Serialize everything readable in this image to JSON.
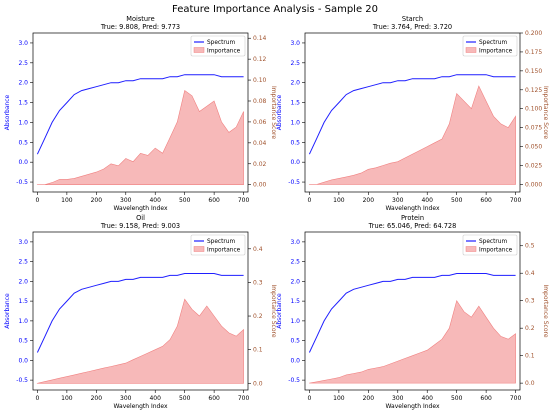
{
  "figure": {
    "suptitle": "Feature Importance Analysis - Sample 20"
  },
  "colors": {
    "spectrum": "#1f1fff",
    "importance": "#f08080",
    "importance_axis": "#a0522d"
  },
  "chart_data": [
    {
      "type": "line+area",
      "title": "Moisture",
      "subtitle": "True: 9.808, Pred: 9.773",
      "xlabel": "Wavelength Index",
      "ylabel": "Absorbance",
      "y2label": "Importance Score",
      "xlim": [
        -15,
        715
      ],
      "ylim": [
        -0.75,
        3.25
      ],
      "y2lim": [
        -0.007,
        0.145
      ],
      "xticks": [
        0,
        100,
        200,
        300,
        400,
        500,
        600,
        700
      ],
      "yticks": [
        -0.5,
        0.0,
        0.5,
        1.0,
        1.5,
        2.0,
        2.5,
        3.0
      ],
      "y2ticks": [
        0.0,
        0.02,
        0.04,
        0.06,
        0.08,
        0.1,
        0.12,
        0.14
      ],
      "y2tick_labels": [
        "0.00",
        "0.02",
        "0.04",
        "0.06",
        "0.08",
        "0.10",
        "0.12",
        "0.14"
      ],
      "legend": [
        "Spectrum",
        "Importance"
      ],
      "legend_position": "top-right",
      "series": [
        {
          "name": "Spectrum",
          "axis": "left",
          "x": [
            0,
            25,
            50,
            75,
            100,
            125,
            150,
            175,
            200,
            225,
            250,
            275,
            300,
            325,
            350,
            375,
            400,
            425,
            450,
            475,
            500,
            525,
            550,
            575,
            600,
            625,
            650,
            675,
            700
          ],
          "values": [
            0.2,
            0.6,
            1.0,
            1.3,
            1.5,
            1.7,
            1.8,
            1.85,
            1.9,
            1.95,
            2.0,
            2.0,
            2.05,
            2.05,
            2.1,
            2.1,
            2.1,
            2.1,
            2.15,
            2.15,
            2.2,
            2.2,
            2.2,
            2.2,
            2.2,
            2.15,
            2.15,
            2.15,
            2.15
          ]
        },
        {
          "name": "Importance",
          "axis": "right",
          "x": [
            0,
            25,
            50,
            75,
            100,
            125,
            150,
            175,
            200,
            225,
            250,
            275,
            300,
            325,
            350,
            375,
            400,
            425,
            450,
            475,
            500,
            525,
            550,
            575,
            600,
            625,
            650,
            675,
            700
          ],
          "values": [
            0.0,
            0.0,
            0.002,
            0.005,
            0.005,
            0.006,
            0.008,
            0.01,
            0.012,
            0.015,
            0.02,
            0.018,
            0.025,
            0.022,
            0.03,
            0.028,
            0.035,
            0.03,
            0.045,
            0.06,
            0.09,
            0.085,
            0.07,
            0.075,
            0.08,
            0.06,
            0.05,
            0.055,
            0.07
          ]
        }
      ]
    },
    {
      "type": "line+area",
      "title": "Starch",
      "subtitle": "True: 3.764, Pred: 3.720",
      "xlabel": "Wavelength Index",
      "ylabel": "Absorbance",
      "y2label": "Importance Score",
      "xlim": [
        -15,
        715
      ],
      "ylim": [
        -0.75,
        3.25
      ],
      "y2lim": [
        -0.01,
        0.2
      ],
      "xticks": [
        0,
        100,
        200,
        300,
        400,
        500,
        600,
        700
      ],
      "yticks": [
        -0.5,
        0.0,
        0.5,
        1.0,
        1.5,
        2.0,
        2.5,
        3.0
      ],
      "y2ticks": [
        0.0,
        0.025,
        0.05,
        0.075,
        0.1,
        0.125,
        0.15,
        0.175,
        0.2
      ],
      "y2tick_labels": [
        "0.000",
        "0.025",
        "0.050",
        "0.075",
        "0.100",
        "0.125",
        "0.150",
        "0.175",
        "0.200"
      ],
      "legend": [
        "Spectrum",
        "Importance"
      ],
      "legend_position": "top-right",
      "series": [
        {
          "name": "Spectrum",
          "axis": "left",
          "x": [
            0,
            25,
            50,
            75,
            100,
            125,
            150,
            175,
            200,
            225,
            250,
            275,
            300,
            325,
            350,
            375,
            400,
            425,
            450,
            475,
            500,
            525,
            550,
            575,
            600,
            625,
            650,
            675,
            700
          ],
          "values": [
            0.2,
            0.6,
            1.0,
            1.3,
            1.5,
            1.7,
            1.8,
            1.85,
            1.9,
            1.95,
            2.0,
            2.0,
            2.05,
            2.05,
            2.1,
            2.1,
            2.1,
            2.1,
            2.15,
            2.15,
            2.2,
            2.2,
            2.2,
            2.2,
            2.2,
            2.15,
            2.15,
            2.15,
            2.15
          ]
        },
        {
          "name": "Importance",
          "axis": "right",
          "x": [
            0,
            25,
            50,
            75,
            100,
            125,
            150,
            175,
            200,
            225,
            250,
            275,
            300,
            325,
            350,
            375,
            400,
            425,
            450,
            475,
            500,
            525,
            550,
            575,
            600,
            625,
            650,
            675,
            700
          ],
          "values": [
            0.0,
            0.0,
            0.003,
            0.006,
            0.008,
            0.01,
            0.012,
            0.015,
            0.02,
            0.022,
            0.025,
            0.028,
            0.03,
            0.035,
            0.04,
            0.045,
            0.05,
            0.055,
            0.06,
            0.08,
            0.12,
            0.11,
            0.1,
            0.13,
            0.11,
            0.09,
            0.08,
            0.075,
            0.09
          ]
        }
      ]
    },
    {
      "type": "line+area",
      "title": "Oil",
      "subtitle": "True: 9.158, Pred: 9.003",
      "xlabel": "Wavelength Index",
      "ylabel": "Absorbance",
      "y2label": "Importance Score",
      "xlim": [
        -15,
        715
      ],
      "ylim": [
        -0.75,
        3.25
      ],
      "y2lim": [
        -0.02,
        0.45
      ],
      "xticks": [
        0,
        100,
        200,
        300,
        400,
        500,
        600,
        700
      ],
      "yticks": [
        -0.5,
        0.0,
        0.5,
        1.0,
        1.5,
        2.0,
        2.5,
        3.0
      ],
      "y2ticks": [
        0.0,
        0.1,
        0.2,
        0.3,
        0.4
      ],
      "y2tick_labels": [
        "0.0",
        "0.1",
        "0.2",
        "0.3",
        "0.4"
      ],
      "legend": [
        "Spectrum",
        "Importance"
      ],
      "legend_position": "top-right",
      "series": [
        {
          "name": "Spectrum",
          "axis": "left",
          "x": [
            0,
            25,
            50,
            75,
            100,
            125,
            150,
            175,
            200,
            225,
            250,
            275,
            300,
            325,
            350,
            375,
            400,
            425,
            450,
            475,
            500,
            525,
            550,
            575,
            600,
            625,
            650,
            675,
            700
          ],
          "values": [
            0.2,
            0.6,
            1.0,
            1.3,
            1.5,
            1.7,
            1.8,
            1.85,
            1.9,
            1.95,
            2.0,
            2.0,
            2.05,
            2.05,
            2.1,
            2.1,
            2.1,
            2.1,
            2.15,
            2.15,
            2.2,
            2.2,
            2.2,
            2.2,
            2.2,
            2.15,
            2.15,
            2.15,
            2.15
          ]
        },
        {
          "name": "Importance",
          "axis": "right",
          "x": [
            0,
            25,
            50,
            75,
            100,
            125,
            150,
            175,
            200,
            225,
            250,
            275,
            300,
            325,
            350,
            375,
            400,
            425,
            450,
            475,
            500,
            525,
            550,
            575,
            600,
            625,
            650,
            675,
            700
          ],
          "values": [
            0.0,
            0.005,
            0.01,
            0.015,
            0.02,
            0.025,
            0.03,
            0.035,
            0.04,
            0.045,
            0.05,
            0.055,
            0.06,
            0.07,
            0.08,
            0.09,
            0.1,
            0.11,
            0.13,
            0.17,
            0.25,
            0.22,
            0.2,
            0.23,
            0.2,
            0.17,
            0.15,
            0.14,
            0.16
          ]
        }
      ]
    },
    {
      "type": "line+area",
      "title": "Protein",
      "subtitle": "True: 65.046, Pred: 64.728",
      "xlabel": "Wavelength Index",
      "ylabel": "Absorbance",
      "y2label": "Importance Score",
      "xlim": [
        -15,
        715
      ],
      "ylim": [
        -0.75,
        3.25
      ],
      "y2lim": [
        -0.025,
        0.55
      ],
      "xticks": [
        0,
        100,
        200,
        300,
        400,
        500,
        600,
        700
      ],
      "yticks": [
        -0.5,
        0.0,
        0.5,
        1.0,
        1.5,
        2.0,
        2.5,
        3.0
      ],
      "y2ticks": [
        0.0,
        0.1,
        0.2,
        0.3,
        0.4,
        0.5
      ],
      "y2tick_labels": [
        "0.0",
        "0.1",
        "0.2",
        "0.3",
        "0.4",
        "0.5"
      ],
      "legend": [
        "Spectrum",
        "Importance"
      ],
      "legend_position": "top-right",
      "series": [
        {
          "name": "Spectrum",
          "axis": "left",
          "x": [
            0,
            25,
            50,
            75,
            100,
            125,
            150,
            175,
            200,
            225,
            250,
            275,
            300,
            325,
            350,
            375,
            400,
            425,
            450,
            475,
            500,
            525,
            550,
            575,
            600,
            625,
            650,
            675,
            700
          ],
          "values": [
            0.2,
            0.6,
            1.0,
            1.3,
            1.5,
            1.7,
            1.8,
            1.85,
            1.9,
            1.95,
            2.0,
            2.0,
            2.05,
            2.05,
            2.1,
            2.1,
            2.1,
            2.1,
            2.15,
            2.15,
            2.2,
            2.2,
            2.2,
            2.2,
            2.2,
            2.15,
            2.15,
            2.15,
            2.15
          ]
        },
        {
          "name": "Importance",
          "axis": "right",
          "x": [
            0,
            25,
            50,
            75,
            100,
            125,
            150,
            175,
            200,
            225,
            250,
            275,
            300,
            325,
            350,
            375,
            400,
            425,
            450,
            475,
            500,
            525,
            550,
            575,
            600,
            625,
            650,
            675,
            700
          ],
          "values": [
            0.0,
            0.005,
            0.01,
            0.015,
            0.02,
            0.03,
            0.035,
            0.04,
            0.05,
            0.055,
            0.06,
            0.07,
            0.08,
            0.09,
            0.1,
            0.11,
            0.12,
            0.14,
            0.16,
            0.2,
            0.3,
            0.26,
            0.24,
            0.28,
            0.24,
            0.2,
            0.17,
            0.16,
            0.18
          ]
        }
      ]
    }
  ]
}
